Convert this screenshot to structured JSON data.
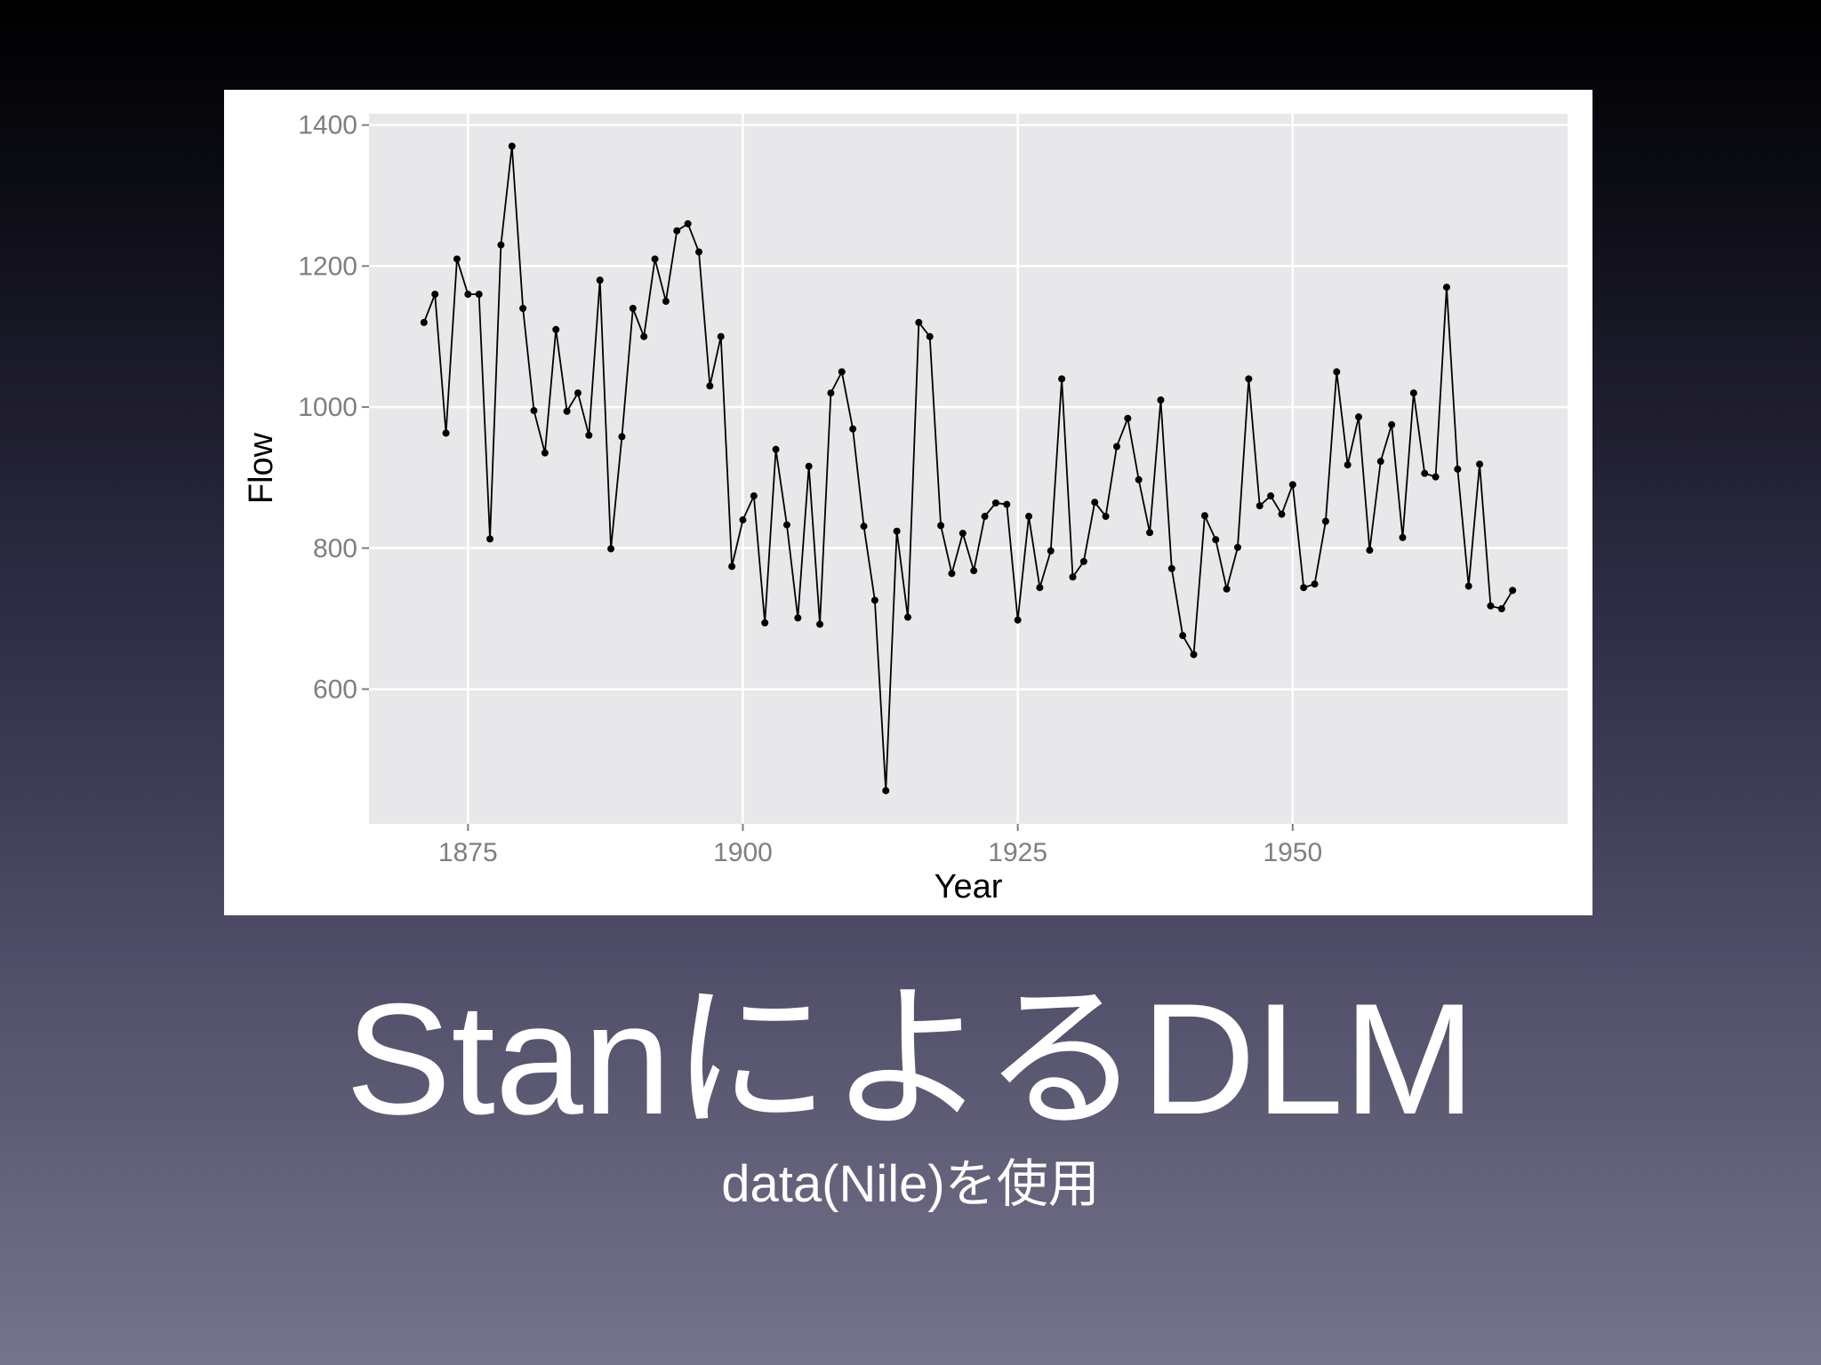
{
  "slide": {
    "title": "StanによるDLM",
    "subtitle": "data(Nile)を使用"
  },
  "chart_data": {
    "type": "line",
    "xlabel": "Year",
    "ylabel": "Flow",
    "color": "#000000",
    "grid": true,
    "xlim": [
      1866,
      1975
    ],
    "xticks": [
      1875,
      1900,
      1925,
      1950
    ],
    "ylim": [
      409,
      1416
    ],
    "yticks": [
      600,
      800,
      1000,
      1200,
      1400
    ],
    "x": [
      1871,
      1872,
      1873,
      1874,
      1875,
      1876,
      1877,
      1878,
      1879,
      1880,
      1881,
      1882,
      1883,
      1884,
      1885,
      1886,
      1887,
      1888,
      1889,
      1890,
      1891,
      1892,
      1893,
      1894,
      1895,
      1896,
      1897,
      1898,
      1899,
      1900,
      1901,
      1902,
      1903,
      1904,
      1905,
      1906,
      1907,
      1908,
      1909,
      1910,
      1911,
      1912,
      1913,
      1914,
      1915,
      1916,
      1917,
      1918,
      1919,
      1920,
      1921,
      1922,
      1923,
      1924,
      1925,
      1926,
      1927,
      1928,
      1929,
      1930,
      1931,
      1932,
      1933,
      1934,
      1935,
      1936,
      1937,
      1938,
      1939,
      1940,
      1941,
      1942,
      1943,
      1944,
      1945,
      1946,
      1947,
      1948,
      1949,
      1950,
      1951,
      1952,
      1953,
      1954,
      1955,
      1956,
      1957,
      1958,
      1959,
      1960,
      1961,
      1962,
      1963,
      1964,
      1965,
      1966,
      1967,
      1968,
      1969,
      1970
    ],
    "values": [
      1120,
      1160,
      963,
      1210,
      1160,
      1160,
      813,
      1230,
      1370,
      1140,
      995,
      935,
      1110,
      994,
      1020,
      960,
      1180,
      799,
      958,
      1140,
      1100,
      1210,
      1150,
      1250,
      1260,
      1220,
      1030,
      1100,
      774,
      840,
      874,
      694,
      940,
      833,
      701,
      916,
      692,
      1020,
      1050,
      969,
      831,
      726,
      456,
      824,
      702,
      1120,
      1100,
      832,
      764,
      821,
      768,
      845,
      864,
      862,
      698,
      845,
      744,
      796,
      1040,
      759,
      781,
      865,
      845,
      944,
      984,
      897,
      822,
      1010,
      771,
      676,
      649,
      846,
      812,
      742,
      801,
      1040,
      860,
      874,
      848,
      890,
      744,
      749,
      838,
      1050,
      918,
      986,
      797,
      923,
      975,
      815,
      1020,
      906,
      901,
      1170,
      912,
      746,
      919,
      718,
      714,
      740
    ]
  }
}
